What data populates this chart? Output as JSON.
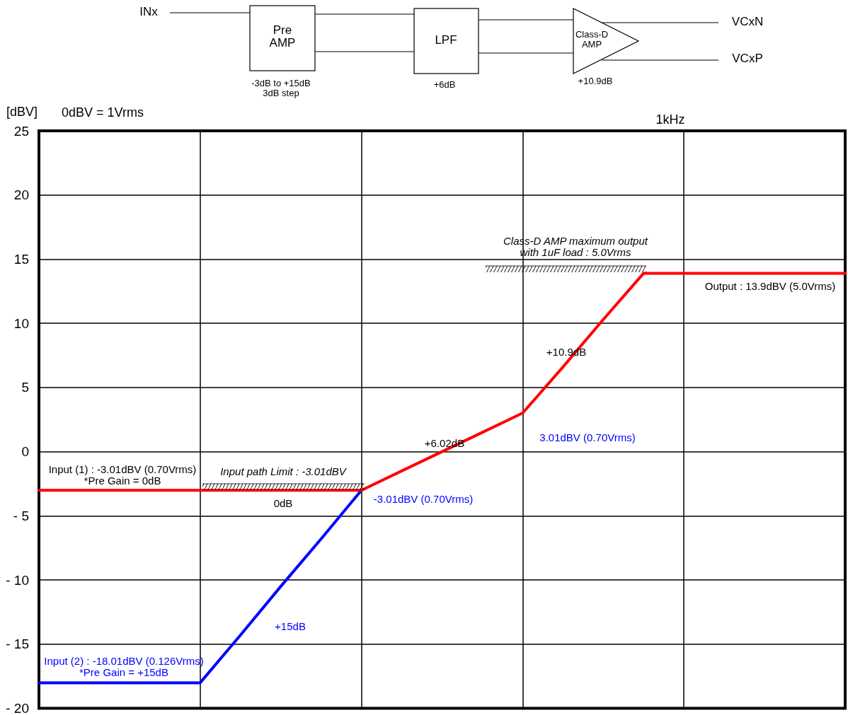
{
  "chart_data": {
    "type": "line",
    "ylabel": "[dBV]",
    "categories": [
      null,
      null,
      null,
      null,
      null,
      null,
      null,
      null,
      null,
      null,
      null,
      null,
      null,
      null,
      null,
      null,
      null,
      null,
      null,
      null,
      null
    ],
    "ylim": [
      -20,
      25
    ],
    "yticks": [
      25,
      20,
      15,
      10,
      5,
      0,
      {
        "value": -5,
        "label": "- 5"
      },
      {
        "value": -10,
        "label": "- 10"
      },
      {
        "value": -15,
        "label": "- 15"
      },
      {
        "value": -20,
        "label": "- 20"
      }
    ],
    "tick_labels": "y",
    "grid": true,
    "marker": "none",
    "series": [
      {
        "values": [
          -18.01,
          -18.01,
          -18.01,
          -18.01,
          -18.01,
          -14.3,
          -10.5,
          -6.8,
          -3.01,
          null,
          null,
          null,
          null,
          null,
          null,
          null,
          null,
          null,
          null,
          null,
          null
        ],
        "color": "#0000ff",
        "line_style": "solid"
      },
      {
        "values": [
          -3.01,
          -3.01,
          -3.01,
          -3.01,
          -3.01,
          -3.01,
          -3.01,
          -3.01,
          -3.01,
          -1.5,
          0,
          1.5,
          3.01,
          6.6,
          10.3,
          13.9,
          13.9,
          13.9,
          13.9,
          13.9,
          13.9
        ],
        "color": "#ff0000",
        "line_style": "solid"
      }
    ],
    "annotations": [
      "0dBV = 1Vrms",
      "1kHz",
      "INx",
      "Pre\nAMP",
      "LPF",
      "Class-D\nAMP",
      "VCxN",
      "VCxP",
      "-3dB to +15dB\n3dB step",
      "+6dB",
      "+10.9dB",
      "Input (1) : -3.01dBV (0.70Vrms)\n*Pre Gain = 0dB",
      "Input path Limit : -3.01dBV",
      "0dB",
      "-3.01dBV (0.70Vrms)",
      "+15dB",
      "Input (2) : -18.01dBV (0.126Vrms)\n*Pre Gain = +15dB",
      "+6.02dB",
      "3.01dBV (0.70Vrms)",
      "+10.9dB",
      "Class-D AMP maximum output\nwith 1uF load : 5.0Vrms",
      "Output : 13.9dBV (5.0Vrms)"
    ]
  }
}
